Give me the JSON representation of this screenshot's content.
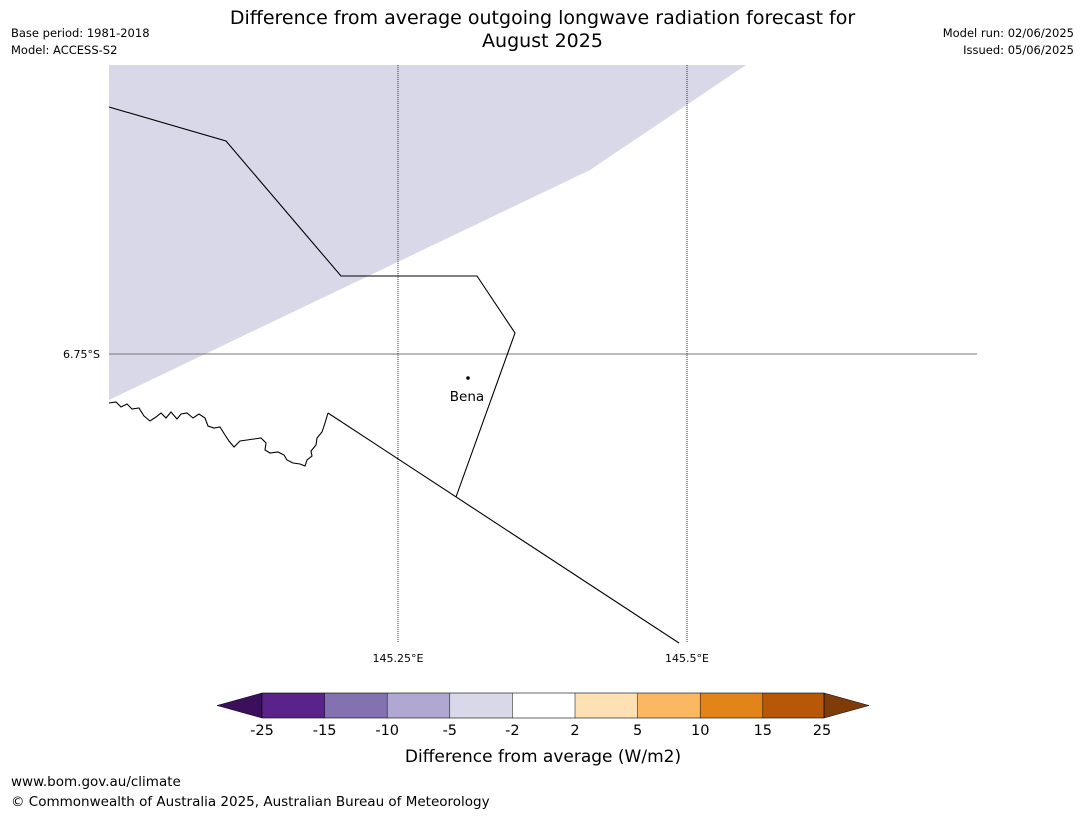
{
  "meta": {
    "base_period": "Base period: 1981-2018",
    "model": "Model: ACCESS-S2",
    "model_run": "Model run: 02/06/2025",
    "issued": "Issued: 05/06/2025"
  },
  "title": {
    "line1": "Difference from average outgoing longwave radiation forecast for",
    "line2": "August 2025"
  },
  "map": {
    "lat_label": "6.75°S",
    "lon_labels": [
      "145.25°E",
      "145.5°E"
    ],
    "place_name": "Bena",
    "shaded_class": "-5 to -2",
    "shaded_color": "#d8d8e9"
  },
  "legend": {
    "title": "Difference from average (W/m2)",
    "ticks": [
      "-25",
      "-15",
      "-10",
      "-5",
      "-2",
      "2",
      "5",
      "10",
      "15",
      "25"
    ],
    "colors": [
      "#3b0f5c",
      "#5a238c",
      "#8471af",
      "#b1a8d1",
      "#d8d8e9",
      "#ffffff",
      "#fde0b4",
      "#fbb862",
      "#e3841a",
      "#b65808",
      "#7f3b08"
    ]
  },
  "footer": {
    "url": "www.bom.gov.au/climate",
    "copyright": "© Commonwealth of Australia 2025, Australian Bureau of Meteorology"
  }
}
